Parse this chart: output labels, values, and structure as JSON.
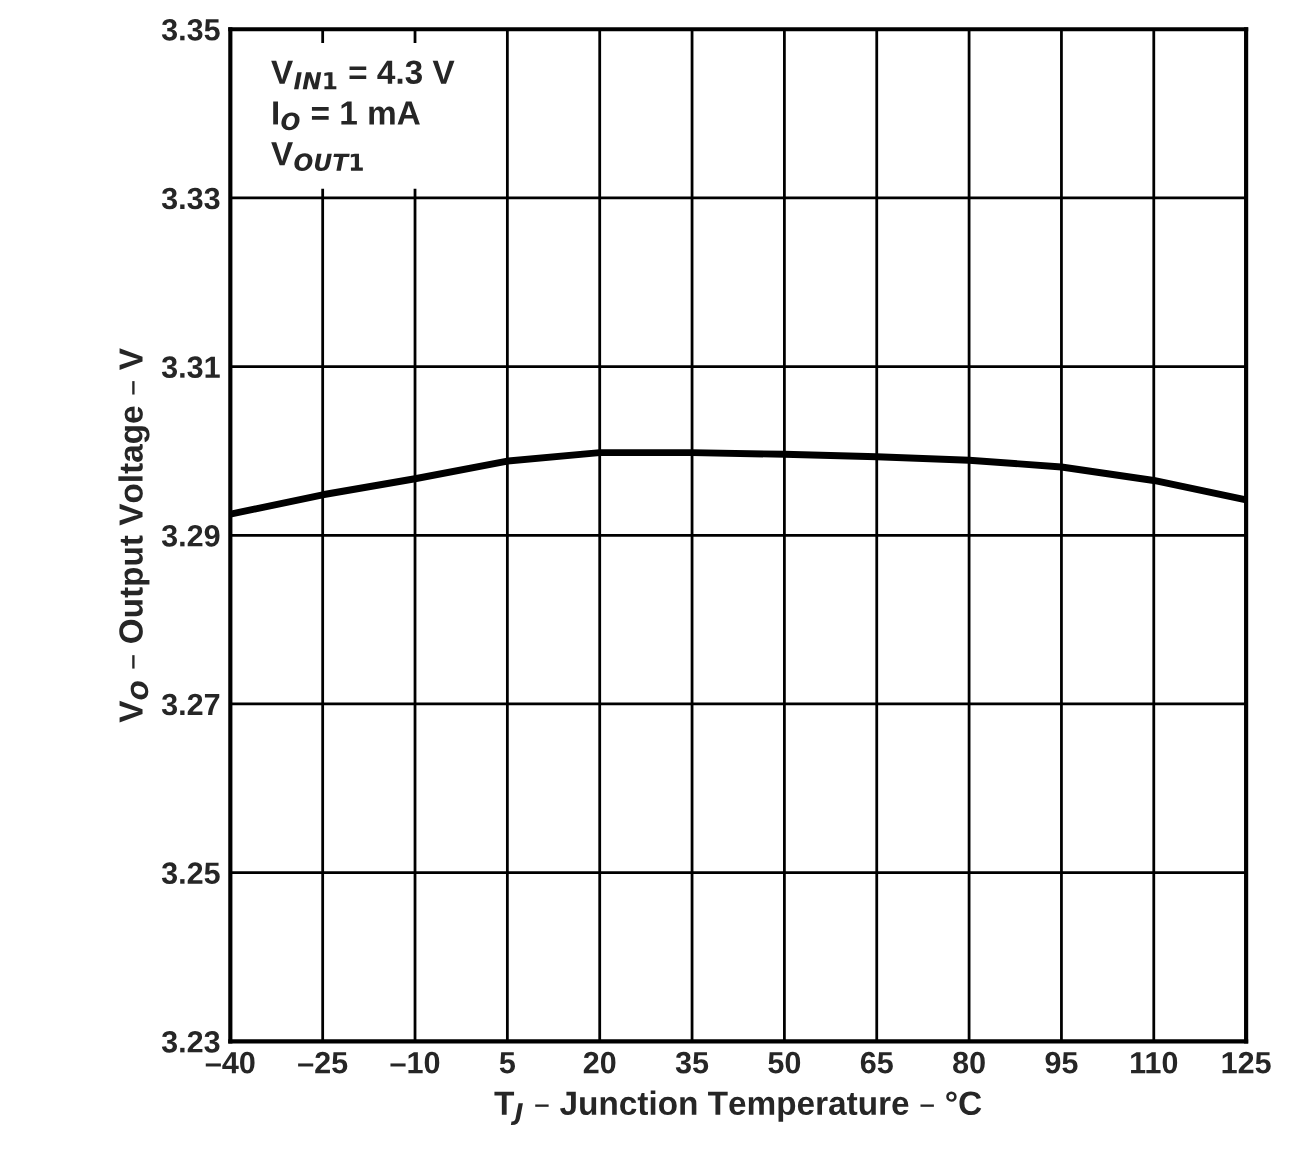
{
  "chart_data": {
    "type": "line",
    "xlabel": "T$_{J}$ – Junction Temperature – °C",
    "ylabel": "V$_{O}$ – Output Voltage – V",
    "annotations": [
      "V$_{IN1}$ = 4.3 V",
      "I$_{O}$ = 1 mA",
      "V$_{OUT1}$"
    ],
    "x": [
      -40,
      -25,
      -10,
      5,
      20,
      35,
      50,
      65,
      80,
      95,
      110,
      125
    ],
    "series": [
      {
        "color": "#000000",
        "values": [
          3.2925,
          3.2948,
          3.2967,
          3.2988,
          3.2998,
          3.2998,
          3.2996,
          3.2993,
          3.2989,
          3.2981,
          3.2965,
          3.2942
        ]
      }
    ],
    "xlim": [
      -40,
      125
    ],
    "ylim": [
      3.23,
      3.35
    ],
    "xticks": [
      {
        "value": -40,
        "label": "–40"
      },
      {
        "value": -25,
        "label": "–25"
      },
      {
        "value": -10,
        "label": "–10"
      },
      5,
      20,
      35,
      50,
      65,
      80,
      95,
      110,
      125
    ],
    "yticks": [
      3.23,
      3.25,
      3.27,
      3.29,
      3.31,
      3.33,
      3.35
    ],
    "grid": true,
    "marker": "none",
    "line_style": "solid"
  }
}
